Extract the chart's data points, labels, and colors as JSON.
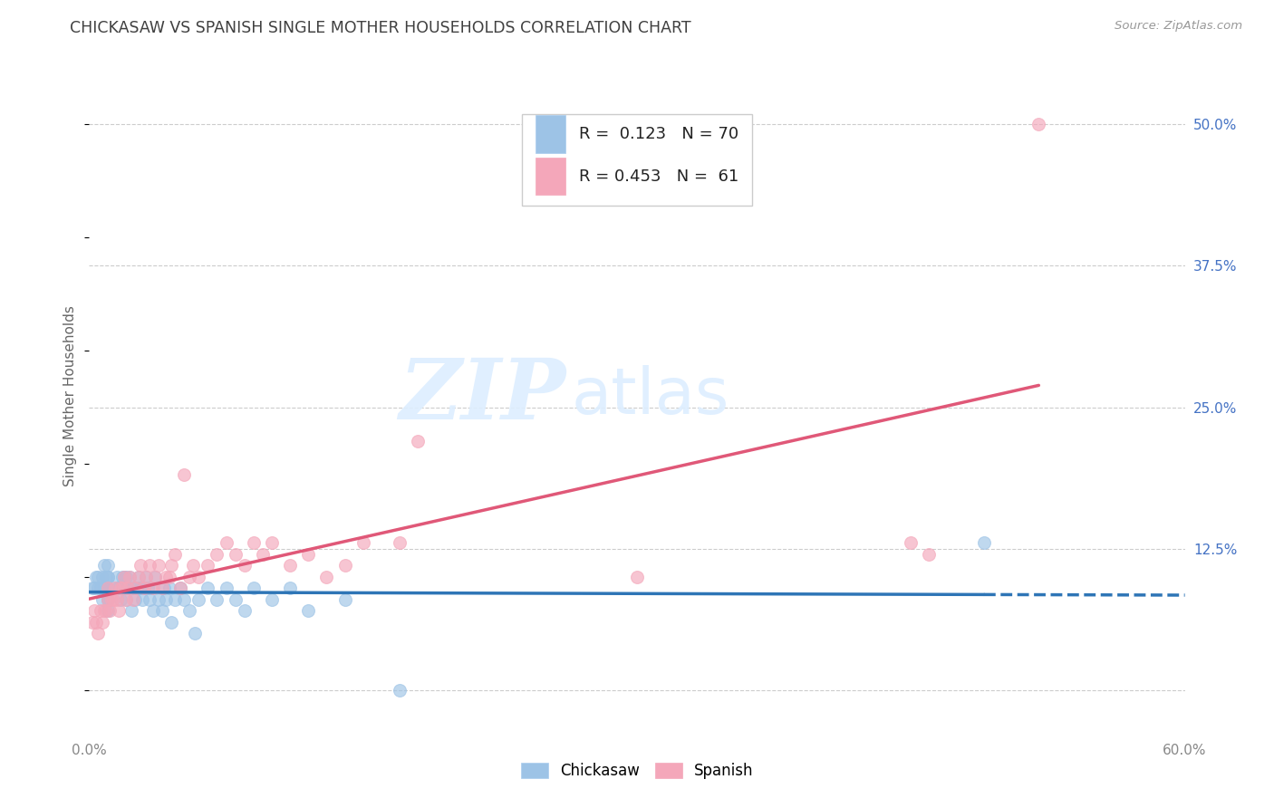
{
  "title": "CHICKASAW VS SPANISH SINGLE MOTHER HOUSEHOLDS CORRELATION CHART",
  "source": "Source: ZipAtlas.com",
  "ylabel": "Single Mother Households",
  "xlim": [
    0.0,
    0.6
  ],
  "ylim": [
    -0.04,
    0.56
  ],
  "chickasaw_R": 0.123,
  "chickasaw_N": 70,
  "spanish_R": 0.453,
  "spanish_N": 61,
  "chickasaw_color": "#9dc3e6",
  "spanish_color": "#f4a7ba",
  "chickasaw_line_color": "#2e75b6",
  "spanish_line_color": "#e05878",
  "watermark_zip": "ZIP",
  "watermark_atlas": "atlas",
  "background_color": "#ffffff",
  "grid_color": "#cccccc",
  "title_color": "#404040",
  "right_tick_color": "#4472c4",
  "chickasaw_x": [
    0.002,
    0.003,
    0.004,
    0.005,
    0.005,
    0.006,
    0.007,
    0.007,
    0.008,
    0.008,
    0.009,
    0.01,
    0.01,
    0.01,
    0.01,
    0.01,
    0.01,
    0.01,
    0.01,
    0.01,
    0.015,
    0.015,
    0.016,
    0.017,
    0.018,
    0.019,
    0.019,
    0.02,
    0.02,
    0.02,
    0.021,
    0.022,
    0.023,
    0.024,
    0.025,
    0.026,
    0.027,
    0.028,
    0.029,
    0.03,
    0.031,
    0.032,
    0.033,
    0.034,
    0.035,
    0.036,
    0.038,
    0.04,
    0.041,
    0.042,
    0.044,
    0.045,
    0.047,
    0.05,
    0.052,
    0.055,
    0.058,
    0.06,
    0.065,
    0.07,
    0.075,
    0.08,
    0.085,
    0.09,
    0.1,
    0.11,
    0.12,
    0.14,
    0.17,
    0.49
  ],
  "chickasaw_y": [
    0.09,
    0.09,
    0.1,
    0.1,
    0.09,
    0.09,
    0.08,
    0.1,
    0.09,
    0.11,
    0.1,
    0.08,
    0.09,
    0.09,
    0.1,
    0.1,
    0.11,
    0.07,
    0.08,
    0.09,
    0.09,
    0.1,
    0.09,
    0.08,
    0.1,
    0.09,
    0.1,
    0.08,
    0.09,
    0.1,
    0.09,
    0.1,
    0.07,
    0.09,
    0.08,
    0.09,
    0.1,
    0.09,
    0.08,
    0.09,
    0.1,
    0.09,
    0.08,
    0.09,
    0.07,
    0.1,
    0.08,
    0.07,
    0.09,
    0.08,
    0.09,
    0.06,
    0.08,
    0.09,
    0.08,
    0.07,
    0.05,
    0.08,
    0.09,
    0.08,
    0.09,
    0.08,
    0.07,
    0.09,
    0.08,
    0.09,
    0.07,
    0.08,
    0.0,
    0.13
  ],
  "spanish_x": [
    0.002,
    0.003,
    0.004,
    0.005,
    0.006,
    0.007,
    0.008,
    0.009,
    0.01,
    0.01,
    0.011,
    0.012,
    0.013,
    0.014,
    0.015,
    0.016,
    0.017,
    0.018,
    0.019,
    0.02,
    0.021,
    0.022,
    0.024,
    0.025,
    0.027,
    0.028,
    0.03,
    0.031,
    0.033,
    0.035,
    0.036,
    0.038,
    0.04,
    0.042,
    0.044,
    0.045,
    0.047,
    0.05,
    0.052,
    0.055,
    0.057,
    0.06,
    0.065,
    0.07,
    0.075,
    0.08,
    0.085,
    0.09,
    0.095,
    0.1,
    0.11,
    0.12,
    0.13,
    0.14,
    0.15,
    0.17,
    0.18,
    0.3,
    0.45,
    0.46,
    0.52
  ],
  "spanish_y": [
    0.06,
    0.07,
    0.06,
    0.05,
    0.07,
    0.06,
    0.07,
    0.07,
    0.08,
    0.09,
    0.07,
    0.08,
    0.08,
    0.09,
    0.08,
    0.07,
    0.09,
    0.09,
    0.1,
    0.08,
    0.09,
    0.1,
    0.08,
    0.09,
    0.1,
    0.11,
    0.09,
    0.1,
    0.11,
    0.09,
    0.1,
    0.11,
    0.09,
    0.1,
    0.1,
    0.11,
    0.12,
    0.09,
    0.19,
    0.1,
    0.11,
    0.1,
    0.11,
    0.12,
    0.13,
    0.12,
    0.11,
    0.13,
    0.12,
    0.13,
    0.11,
    0.12,
    0.1,
    0.11,
    0.13,
    0.13,
    0.22,
    0.1,
    0.13,
    0.12,
    0.5
  ]
}
